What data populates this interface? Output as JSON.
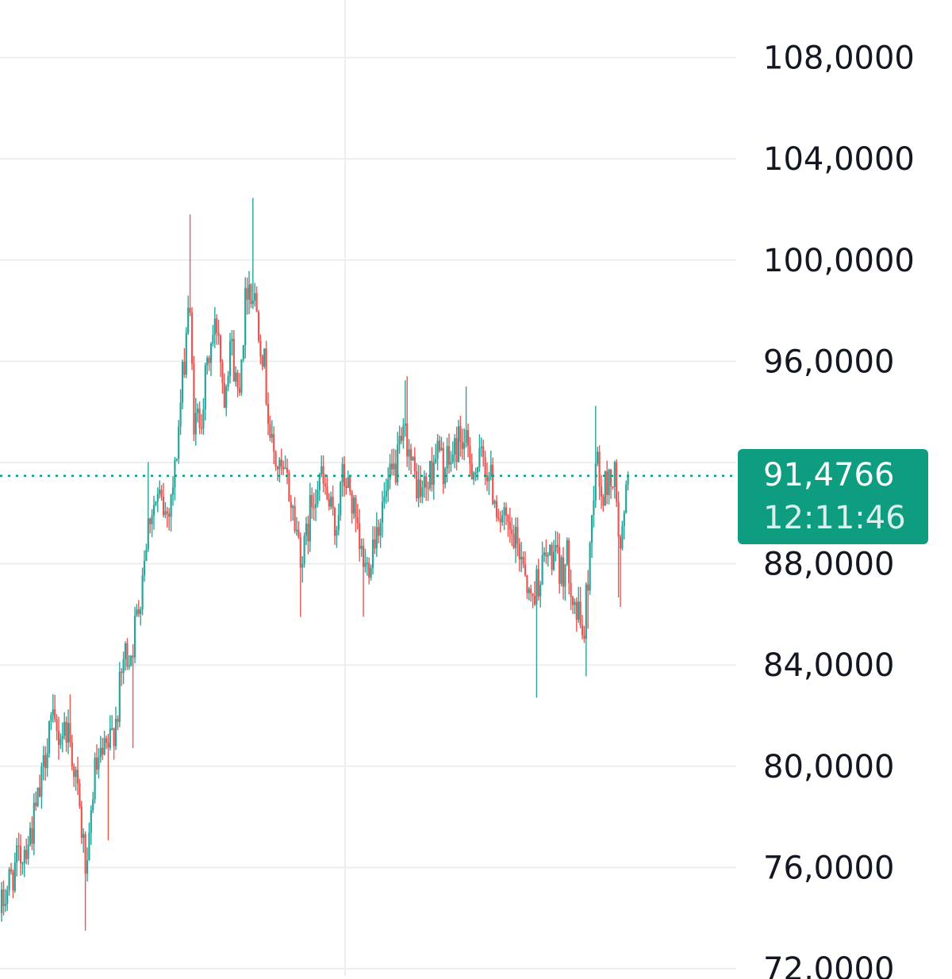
{
  "chart_data": {
    "type": "candlestick",
    "y_ticks": [
      "108,0000",
      "104,0000",
      "100,0000",
      "96,0000",
      "92,0000",
      "88,0000",
      "84,0000",
      "80,0000",
      "76,0000",
      "72,0000"
    ],
    "ylim": [
      72,
      109.5
    ],
    "last_price": 91.4766,
    "last_price_label": "91,4766",
    "countdown_label": "12:11:46",
    "grid": true,
    "colors": {
      "up": "#26a69a",
      "down": "#ef5350",
      "tag": "#0f9d82",
      "grid": "#eceef2",
      "text": "#131722"
    },
    "anchors": [
      [
        0,
        74.2
      ],
      [
        12,
        75.5
      ],
      [
        28,
        76.6
      ],
      [
        40,
        77.5
      ],
      [
        52,
        79.2
      ],
      [
        62,
        81.8
      ],
      [
        72,
        81.2
      ],
      [
        85,
        81.6
      ],
      [
        95,
        79.7
      ],
      [
        103,
        77.4
      ],
      [
        110,
        75.5
      ],
      [
        118,
        79.6
      ],
      [
        128,
        80.2
      ],
      [
        138,
        80.8
      ],
      [
        148,
        82.2
      ],
      [
        156,
        84.3
      ],
      [
        166,
        84.6
      ],
      [
        176,
        86.6
      ],
      [
        183,
        88.8
      ],
      [
        190,
        90.2
      ],
      [
        200,
        90.5
      ],
      [
        210,
        89.9
      ],
      [
        220,
        91.5
      ],
      [
        230,
        95.2
      ],
      [
        238,
        98.6
      ],
      [
        245,
        93.3
      ],
      [
        255,
        94.2
      ],
      [
        265,
        96.6
      ],
      [
        275,
        97.6
      ],
      [
        282,
        94.6
      ],
      [
        290,
        96.9
      ],
      [
        300,
        94.7
      ],
      [
        312,
        99.3
      ],
      [
        322,
        98.4
      ],
      [
        332,
        96.2
      ],
      [
        342,
        92.6
      ],
      [
        352,
        91.6
      ],
      [
        362,
        91.2
      ],
      [
        372,
        89.6
      ],
      [
        382,
        88.1
      ],
      [
        392,
        90.3
      ],
      [
        402,
        91.6
      ],
      [
        412,
        90.6
      ],
      [
        422,
        89.3
      ],
      [
        432,
        91.4
      ],
      [
        442,
        90.8
      ],
      [
        452,
        88.6
      ],
      [
        462,
        87.7
      ],
      [
        472,
        89.2
      ],
      [
        482,
        90.2
      ],
      [
        492,
        91.2
      ],
      [
        502,
        92.1
      ],
      [
        512,
        93.2
      ],
      [
        520,
        91.6
      ],
      [
        530,
        90.8
      ],
      [
        540,
        91.2
      ],
      [
        550,
        92.6
      ],
      [
        560,
        91.7
      ],
      [
        570,
        92.2
      ],
      [
        580,
        93.1
      ],
      [
        590,
        92.3
      ],
      [
        600,
        91.7
      ],
      [
        610,
        92.2
      ],
      [
        620,
        91.1
      ],
      [
        630,
        89.9
      ],
      [
        640,
        89.2
      ],
      [
        650,
        88.7
      ],
      [
        660,
        88.3
      ],
      [
        668,
        86.4
      ],
      [
        676,
        87.2
      ],
      [
        686,
        88.1
      ],
      [
        696,
        88.4
      ],
      [
        706,
        87.6
      ],
      [
        716,
        88.2
      ],
      [
        726,
        86.1
      ],
      [
        736,
        85.2
      ],
      [
        744,
        88.8
      ],
      [
        751,
        92.5
      ],
      [
        758,
        90.5
      ],
      [
        766,
        91.3
      ],
      [
        775,
        91.4
      ],
      [
        782,
        88.2
      ],
      [
        792,
        91.4766
      ]
    ]
  }
}
